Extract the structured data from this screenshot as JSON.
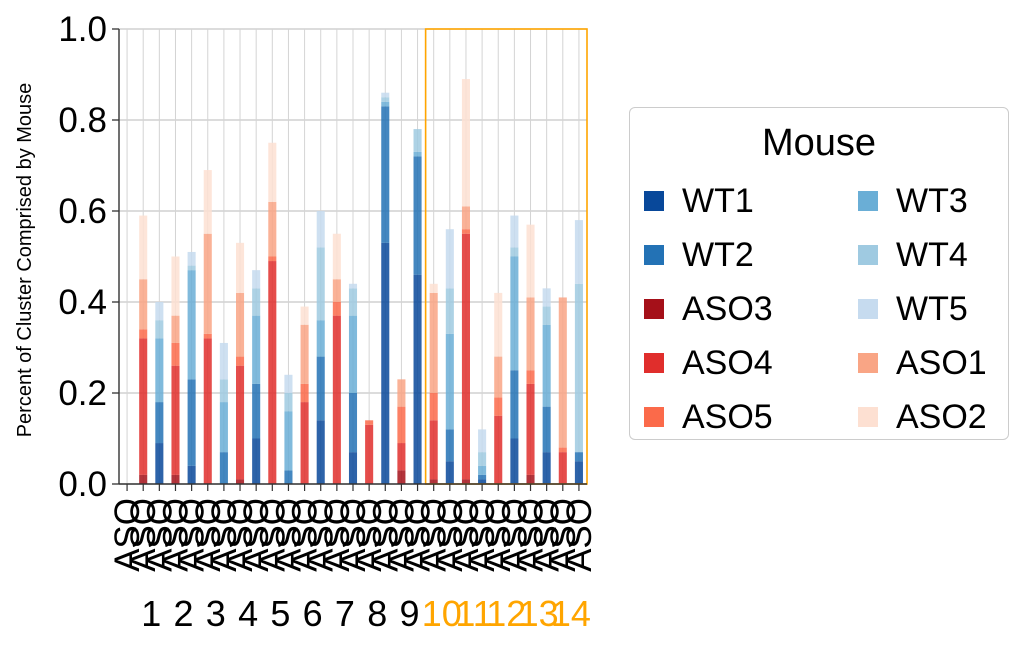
{
  "chart_data": {
    "type": "bar",
    "stacked": true,
    "ylabel": "Percent of Cluster Comprised by Mouse",
    "ylim": [
      0,
      1.0
    ],
    "yticks": [
      "0.0",
      "0.2",
      "0.4",
      "0.6",
      "0.8",
      "1.0"
    ],
    "grid": true,
    "bar_tick_label": "ASO",
    "cluster_labels": [
      "1",
      "2",
      "3",
      "4",
      "5",
      "6",
      "7",
      "8",
      "9",
      "10",
      "11",
      "12",
      "13",
      "14"
    ],
    "highlight_clusters": [
      "10",
      "11",
      "12",
      "13",
      "14"
    ],
    "highlight_color": "#ffa500",
    "legend": {
      "title": "Mouse",
      "placement": "right",
      "order": [
        "WT1",
        "WT3",
        "WT2",
        "WT4",
        "ASO3",
        "WT5",
        "ASO4",
        "ASO1",
        "ASO5",
        "ASO2"
      ]
    },
    "series_colors": {
      "WT1": "#08489a",
      "WT2": "#2372b5",
      "WT3": "#6aaed6",
      "WT4": "#9fcae1",
      "WT5": "#c6dbef",
      "ASO1": "#f9a585",
      "ASO2": "#fde0d2",
      "ASO3": "#a51019",
      "ASO4": "#e02e2c",
      "ASO5": "#fb6a4a"
    },
    "bars": [
      {
        "cluster": "1",
        "group": "WT",
        "values": {
          "WT1": 0,
          "WT2": 0,
          "WT3": 0,
          "WT4": 0,
          "WT5": 0
        }
      },
      {
        "cluster": "1",
        "group": "ASO",
        "values": {
          "ASO3": 0.02,
          "ASO4": 0.3,
          "ASO5": 0.02,
          "ASO1": 0.11,
          "ASO2": 0.14
        }
      },
      {
        "cluster": "1",
        "group": "WT",
        "values": {
          "WT1": 0.09,
          "WT2": 0.09,
          "WT3": 0.14,
          "WT4": 0.04,
          "WT5": 0.04
        }
      },
      {
        "cluster": "2",
        "group": "ASO",
        "values": {
          "ASO3": 0.02,
          "ASO4": 0.24,
          "ASO5": 0.05,
          "ASO1": 0.06,
          "ASO2": 0.13
        }
      },
      {
        "cluster": "2",
        "group": "WT",
        "values": {
          "WT1": 0.04,
          "WT2": 0.19,
          "WT3": 0.24,
          "WT4": 0.01,
          "WT5": 0.03
        }
      },
      {
        "cluster": "3",
        "group": "ASO",
        "values": {
          "ASO3": 0.0,
          "ASO4": 0.32,
          "ASO5": 0.01,
          "ASO1": 0.22,
          "ASO2": 0.14
        }
      },
      {
        "cluster": "3",
        "group": "WT",
        "values": {
          "WT1": 0.0,
          "WT2": 0.07,
          "WT3": 0.11,
          "WT4": 0.05,
          "WT5": 0.08
        }
      },
      {
        "cluster": "4",
        "group": "ASO",
        "values": {
          "ASO3": 0.01,
          "ASO4": 0.25,
          "ASO5": 0.02,
          "ASO1": 0.14,
          "ASO2": 0.11
        }
      },
      {
        "cluster": "4",
        "group": "WT",
        "values": {
          "WT1": 0.1,
          "WT2": 0.12,
          "WT3": 0.15,
          "WT4": 0.06,
          "WT5": 0.04
        }
      },
      {
        "cluster": "5",
        "group": "ASO",
        "values": {
          "ASO3": 0.0,
          "ASO4": 0.49,
          "ASO5": 0.01,
          "ASO1": 0.12,
          "ASO2": 0.13
        }
      },
      {
        "cluster": "5",
        "group": "WT",
        "values": {
          "WT1": 0.0,
          "WT2": 0.03,
          "WT3": 0.13,
          "WT4": 0.04,
          "WT5": 0.04
        }
      },
      {
        "cluster": "6",
        "group": "ASO",
        "values": {
          "ASO3": 0.0,
          "ASO4": 0.18,
          "ASO5": 0.04,
          "ASO1": 0.13,
          "ASO2": 0.04
        }
      },
      {
        "cluster": "6",
        "group": "WT",
        "values": {
          "WT1": 0.14,
          "WT2": 0.14,
          "WT3": 0.08,
          "WT4": 0.16,
          "WT5": 0.08
        }
      },
      {
        "cluster": "7",
        "group": "ASO",
        "values": {
          "ASO3": 0.0,
          "ASO4": 0.37,
          "ASO5": 0.03,
          "ASO1": 0.05,
          "ASO2": 0.1
        }
      },
      {
        "cluster": "7",
        "group": "WT",
        "values": {
          "WT1": 0.07,
          "WT2": 0.13,
          "WT3": 0.17,
          "WT4": 0.06,
          "WT5": 0.01
        }
      },
      {
        "cluster": "8",
        "group": "ASO",
        "values": {
          "ASO3": 0.0,
          "ASO4": 0.13,
          "ASO5": 0.01,
          "ASO1": 0.0,
          "ASO2": 0.0
        }
      },
      {
        "cluster": "8",
        "group": "WT",
        "values": {
          "WT1": 0.53,
          "WT2": 0.3,
          "WT3": 0.01,
          "WT4": 0.01,
          "WT5": 0.01
        }
      },
      {
        "cluster": "9",
        "group": "ASO",
        "values": {
          "ASO3": 0.03,
          "ASO4": 0.06,
          "ASO5": 0.08,
          "ASO1": 0.06,
          "ASO2": 0.0
        }
      },
      {
        "cluster": "9",
        "group": "WT",
        "values": {
          "WT1": 0.46,
          "WT2": 0.26,
          "WT3": 0.01,
          "WT4": 0.05,
          "WT5": 0.0
        }
      },
      {
        "cluster": "10",
        "group": "ASO",
        "values": {
          "ASO3": 0.01,
          "ASO4": 0.13,
          "ASO5": 0.06,
          "ASO1": 0.22,
          "ASO2": 0.02
        }
      },
      {
        "cluster": "10",
        "group": "WT",
        "values": {
          "WT1": 0.05,
          "WT2": 0.07,
          "WT3": 0.21,
          "WT4": 0.1,
          "WT5": 0.13
        }
      },
      {
        "cluster": "11",
        "group": "ASO",
        "values": {
          "ASO3": 0.01,
          "ASO4": 0.54,
          "ASO5": 0.01,
          "ASO1": 0.05,
          "ASO2": 0.28
        }
      },
      {
        "cluster": "11",
        "group": "WT",
        "values": {
          "WT1": 0.01,
          "WT2": 0.01,
          "WT3": 0.02,
          "WT4": 0.03,
          "WT5": 0.05
        }
      },
      {
        "cluster": "12",
        "group": "ASO",
        "values": {
          "ASO3": 0.0,
          "ASO4": 0.15,
          "ASO5": 0.04,
          "ASO1": 0.09,
          "ASO2": 0.14
        }
      },
      {
        "cluster": "12",
        "group": "WT",
        "values": {
          "WT1": 0.1,
          "WT2": 0.15,
          "WT3": 0.25,
          "WT4": 0.02,
          "WT5": 0.07
        }
      },
      {
        "cluster": "13",
        "group": "ASO",
        "values": {
          "ASO3": 0.02,
          "ASO4": 0.2,
          "ASO5": 0.03,
          "ASO1": 0.16,
          "ASO2": 0.16
        }
      },
      {
        "cluster": "13",
        "group": "WT",
        "values": {
          "WT1": 0.07,
          "WT2": 0.1,
          "WT3": 0.18,
          "WT4": 0.04,
          "WT5": 0.04
        }
      },
      {
        "cluster": "14",
        "group": "ASO",
        "values": {
          "ASO3": 0.0,
          "ASO4": 0.07,
          "ASO5": 0.01,
          "ASO1": 0.33,
          "ASO2": 0.0
        }
      },
      {
        "cluster": "14",
        "group": "WT",
        "values": {
          "WT1": 0.05,
          "WT2": 0.02,
          "WT3": 0.0,
          "WT4": 0.37,
          "WT5": 0.14
        }
      }
    ]
  }
}
